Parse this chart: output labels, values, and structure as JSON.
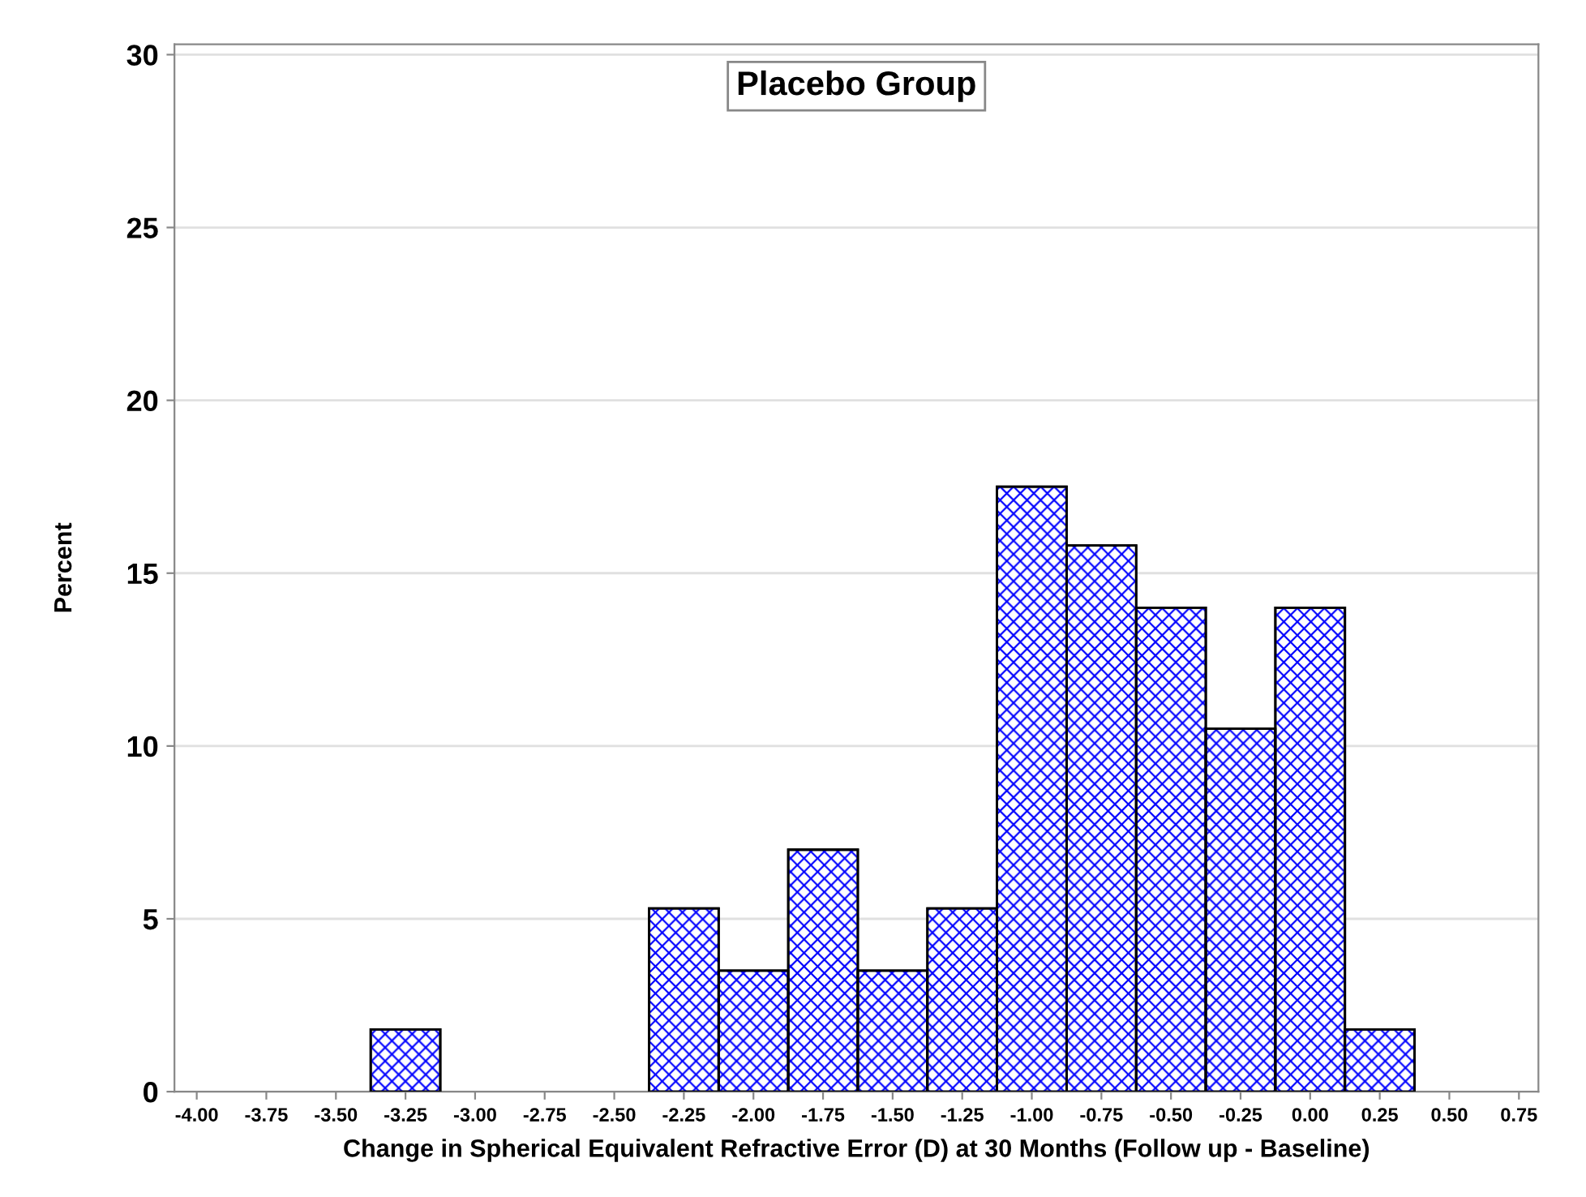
{
  "chart_data": {
    "type": "histogram",
    "title": "Placebo Group",
    "xlabel": "Change in Spherical Equivalent Refractive Error (D) at 30 Months (Follow up - Baseline)",
    "ylabel": "Percent",
    "bins": [
      -3.375,
      -3.125,
      -2.875,
      -2.625,
      -2.375,
      -2.125,
      -1.875,
      -1.625,
      -1.375,
      -1.125,
      -0.875,
      -0.625,
      -0.375,
      -0.125,
      0.125,
      0.375
    ],
    "values": [
      1.8,
      0,
      0,
      0,
      5.3,
      3.5,
      7.0,
      3.5,
      5.3,
      17.5,
      15.8,
      14.0,
      10.5,
      14.0,
      1.8
    ],
    "color": "#0000ff",
    "xlim": [
      -4.08,
      0.82
    ],
    "xticks": [
      {
        "value": -4,
        "label": "-4.00"
      },
      {
        "value": -3.75,
        "label": "-3.75"
      },
      {
        "value": -3.5,
        "label": "-3.50"
      },
      {
        "value": -3.25,
        "label": "-3.25"
      },
      {
        "value": -3,
        "label": "-3.00"
      },
      {
        "value": -2.75,
        "label": "-2.75"
      },
      {
        "value": -2.5,
        "label": "-2.50"
      },
      {
        "value": -2.25,
        "label": "-2.25"
      },
      {
        "value": -2,
        "label": "-2.00"
      },
      {
        "value": -1.75,
        "label": "-1.75"
      },
      {
        "value": -1.5,
        "label": "-1.50"
      },
      {
        "value": -1.25,
        "label": "-1.25"
      },
      {
        "value": -1,
        "label": "-1.00"
      },
      {
        "value": -0.75,
        "label": "-0.75"
      },
      {
        "value": -0.5,
        "label": "-0.50"
      },
      {
        "value": -0.25,
        "label": "-0.25"
      },
      {
        "value": 0,
        "label": "0.00"
      },
      {
        "value": 0.25,
        "label": "0.25"
      },
      {
        "value": 0.5,
        "label": "0.50"
      },
      {
        "value": 0.75,
        "label": "0.75"
      }
    ],
    "ylim": [
      0,
      30.3
    ],
    "yticks": [
      0,
      5,
      10,
      15,
      20,
      25,
      30
    ],
    "grid": "y"
  }
}
